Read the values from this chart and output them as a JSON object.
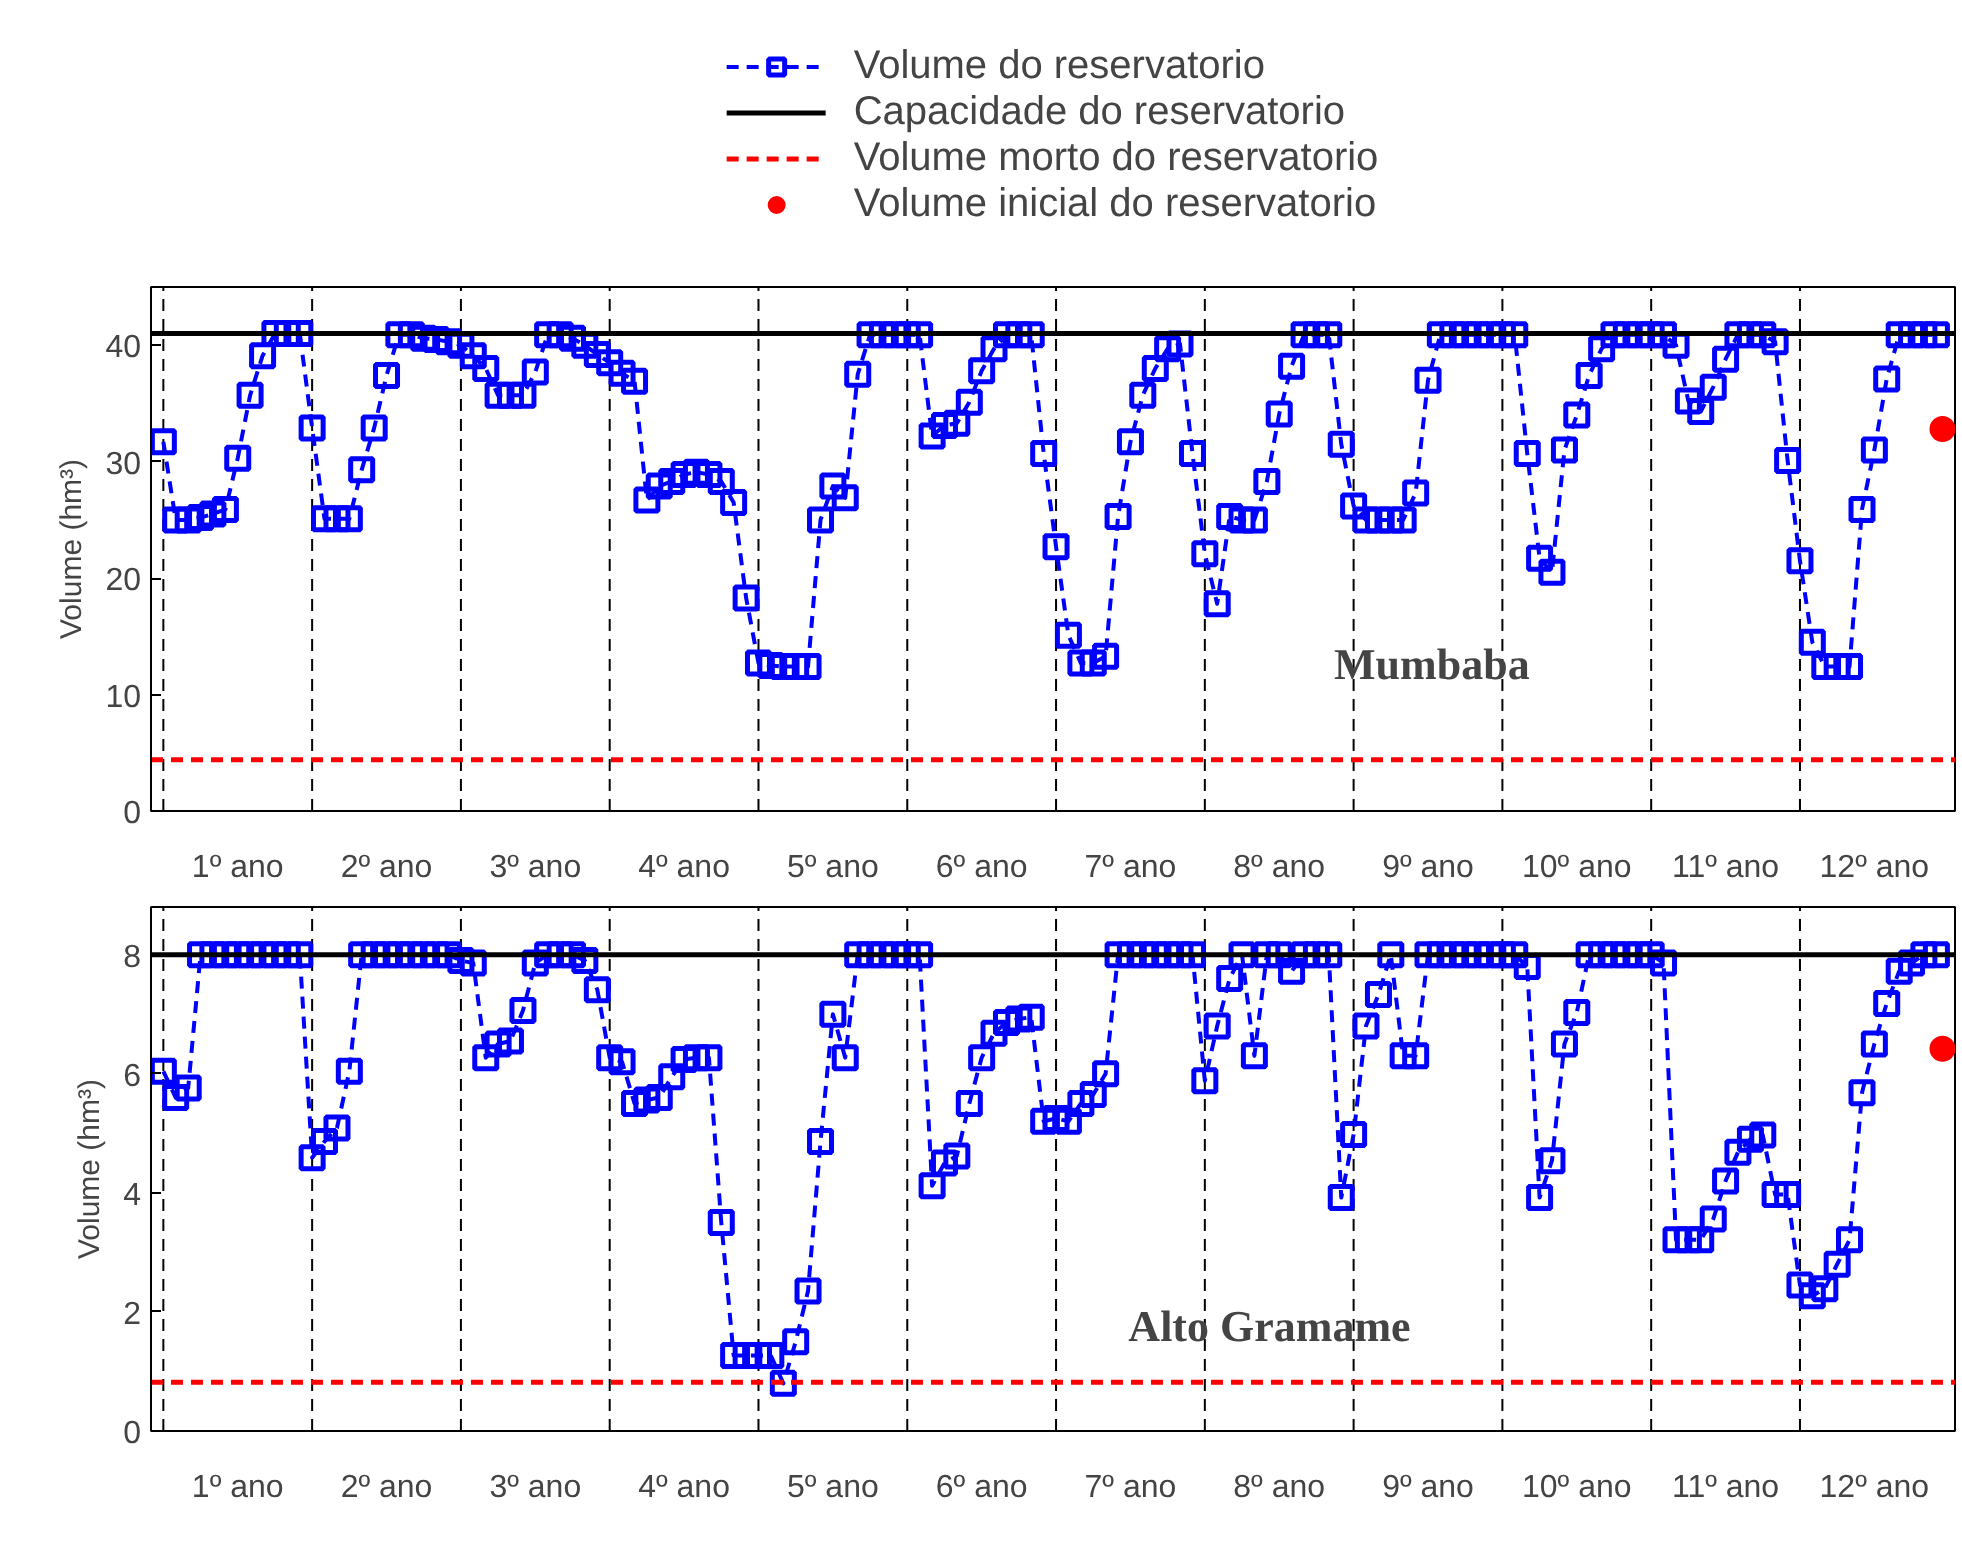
{
  "chart_data": [
    {
      "type": "line",
      "ylabel": "Volume (hm³)",
      "annotations": [
        "Mumbaba"
      ],
      "legend": "top",
      "grid": false,
      "xlim": [
        0.417,
        12.542
      ],
      "ylim": [
        0,
        45
      ],
      "yticks": [
        0,
        10,
        20,
        30,
        40
      ],
      "xticks": [
        {
          "value": 1,
          "label": "1º ano"
        },
        {
          "value": 2,
          "label": "2º ano"
        },
        {
          "value": 3,
          "label": "3º ano"
        },
        {
          "value": 4,
          "label": "4º ano"
        },
        {
          "value": 5,
          "label": "5º ano"
        },
        {
          "value": 6,
          "label": "6º ano"
        },
        {
          "value": 7,
          "label": "7º ano"
        },
        {
          "value": 8,
          "label": "8º ano"
        },
        {
          "value": 9,
          "label": "9º ano"
        },
        {
          "value": 10,
          "label": "10º ano"
        },
        {
          "value": 11,
          "label": "11º ano"
        },
        {
          "value": 12,
          "label": "12º ano"
        }
      ],
      "ref_lines": [
        {
          "axis": "x",
          "value": 0.5,
          "color": "#000000",
          "line_style": "dashed"
        },
        {
          "axis": "x",
          "value": 1.5,
          "color": "#000000",
          "line_style": "dashed"
        },
        {
          "axis": "x",
          "value": 2.5,
          "color": "#000000",
          "line_style": "dashed"
        },
        {
          "axis": "x",
          "value": 3.5,
          "color": "#000000",
          "line_style": "dashed"
        },
        {
          "axis": "x",
          "value": 4.5,
          "color": "#000000",
          "line_style": "dashed"
        },
        {
          "axis": "x",
          "value": 5.5,
          "color": "#000000",
          "line_style": "dashed"
        },
        {
          "axis": "x",
          "value": 6.5,
          "color": "#000000",
          "line_style": "dashed"
        },
        {
          "axis": "x",
          "value": 7.5,
          "color": "#000000",
          "line_style": "dashed"
        },
        {
          "axis": "x",
          "value": 8.5,
          "color": "#000000",
          "line_style": "dashed"
        },
        {
          "axis": "x",
          "value": 9.5,
          "color": "#000000",
          "line_style": "dashed"
        },
        {
          "axis": "x",
          "value": 10.5,
          "color": "#000000",
          "line_style": "dashed"
        },
        {
          "axis": "x",
          "value": 11.5,
          "color": "#000000",
          "line_style": "dashed"
        }
      ],
      "series": [
        {
          "name": "Volume do reservatorio",
          "marker": "square",
          "line_style": "dashed",
          "color": "#0000ff",
          "x": [
            0.5,
            0.583,
            0.667,
            0.75,
            0.833,
            0.917,
            1,
            1.083,
            1.167,
            1.25,
            1.333,
            1.417,
            1.5,
            1.583,
            1.667,
            1.75,
            1.833,
            1.917,
            2,
            2.083,
            2.167,
            2.25,
            2.333,
            2.417,
            2.5,
            2.583,
            2.667,
            2.75,
            2.833,
            2.917,
            3,
            3.083,
            3.167,
            3.25,
            3.333,
            3.417,
            3.5,
            3.583,
            3.667,
            3.75,
            3.833,
            3.917,
            4,
            4.083,
            4.167,
            4.25,
            4.333,
            4.417,
            4.5,
            4.583,
            4.667,
            4.75,
            4.833,
            4.917,
            5,
            5.083,
            5.167,
            5.25,
            5.333,
            5.417,
            5.5,
            5.583,
            5.667,
            5.75,
            5.833,
            5.917,
            6,
            6.083,
            6.167,
            6.25,
            6.333,
            6.417,
            6.5,
            6.583,
            6.667,
            6.75,
            6.833,
            6.917,
            7,
            7.083,
            7.167,
            7.25,
            7.333,
            7.417,
            7.5,
            7.583,
            7.667,
            7.75,
            7.833,
            7.917,
            8,
            8.083,
            8.167,
            8.25,
            8.333,
            8.417,
            8.5,
            8.583,
            8.667,
            8.75,
            8.833,
            8.917,
            9,
            9.083,
            9.167,
            9.25,
            9.333,
            9.417,
            9.5,
            9.583,
            9.667,
            9.75,
            9.833,
            9.917,
            10,
            10.083,
            10.167,
            10.25,
            10.333,
            10.417,
            10.5,
            10.583,
            10.667,
            10.75,
            10.833,
            10.917,
            11,
            11.083,
            11.167,
            11.25,
            11.333,
            11.417,
            11.5,
            11.583,
            11.667,
            11.75,
            11.833,
            11.917,
            12,
            12.083,
            12.167,
            12.25,
            12.333,
            12.417
          ],
          "values": [
            31.7,
            25,
            25,
            25.2,
            25.5,
            25.9,
            30.3,
            35.7,
            39.1,
            41,
            41,
            41,
            32.9,
            25.1,
            25.1,
            25.1,
            29.3,
            32.9,
            37.4,
            40.9,
            40.9,
            40.6,
            40.5,
            40.3,
            40,
            39.1,
            38,
            35.7,
            35.7,
            35.7,
            37.7,
            40.9,
            40.9,
            40.6,
            40,
            39.2,
            38.5,
            37.6,
            36.9,
            26.7,
            27.9,
            28.3,
            28.9,
            29.1,
            28.9,
            28.3,
            26.5,
            18.3,
            12.7,
            12.5,
            12.4,
            12.4,
            12.4,
            25,
            27.9,
            26.9,
            37.5,
            40.9,
            40.9,
            40.9,
            40.9,
            40.9,
            32.2,
            33.1,
            33.3,
            35.1,
            37.8,
            39.7,
            40.9,
            40.9,
            40.9,
            30.7,
            22.7,
            15.1,
            12.7,
            12.7,
            13.3,
            25.3,
            31.7,
            35.7,
            38,
            39.7,
            40.1,
            30.7,
            22.1,
            17.8,
            25.3,
            25,
            25,
            28.3,
            34.1,
            38.2,
            40.9,
            40.9,
            40.9,
            31.5,
            26.2,
            25,
            25,
            25,
            25,
            27.3,
            37,
            40.9,
            40.9,
            40.9,
            40.9,
            40.9,
            40.9,
            40.9,
            30.7,
            21.7,
            20.5,
            31,
            34,
            37.4,
            39.7,
            40.9,
            40.9,
            40.9,
            40.9,
            40.9,
            40,
            35.2,
            34.3,
            36.4,
            38.8,
            40.9,
            40.9,
            40.9,
            40.3,
            30.1,
            21.5,
            14.5,
            12.4,
            12.4,
            12.4,
            25.9,
            31,
            37.1,
            40.9,
            40.9,
            40.9,
            40.9
          ]
        },
        {
          "name": "Capacidade do reservatorio",
          "marker": "none",
          "line_style": "solid",
          "color": "#000000",
          "x": [
            0.417,
            12.542
          ],
          "values": [
            41,
            41
          ]
        },
        {
          "name": "Volume morto do reservatorio",
          "marker": "none",
          "line_style": "dashed",
          "color": "#ff0000",
          "x": [
            0.417,
            12.542
          ],
          "values": [
            4.4,
            4.4
          ]
        },
        {
          "name": "Volume inicial do reservatorio",
          "type": "scatter",
          "marker": "circle",
          "color": "#ff0000",
          "x": [
            12.458
          ],
          "values": [
            32.8
          ]
        }
      ]
    },
    {
      "type": "line",
      "ylabel": "Volume (hm³)",
      "annotations": [
        "Alto Gramame"
      ],
      "legend": false,
      "grid": false,
      "xlim": [
        0.417,
        12.542
      ],
      "ylim": [
        0,
        8.8
      ],
      "yticks": [
        0,
        2,
        4,
        6,
        8
      ],
      "xticks": [
        {
          "value": 1,
          "label": "1º ano"
        },
        {
          "value": 2,
          "label": "2º ano"
        },
        {
          "value": 3,
          "label": "3º ano"
        },
        {
          "value": 4,
          "label": "4º ano"
        },
        {
          "value": 5,
          "label": "5º ano"
        },
        {
          "value": 6,
          "label": "6º ano"
        },
        {
          "value": 7,
          "label": "7º ano"
        },
        {
          "value": 8,
          "label": "8º ano"
        },
        {
          "value": 9,
          "label": "9º ano"
        },
        {
          "value": 10,
          "label": "10º ano"
        },
        {
          "value": 11,
          "label": "11º ano"
        },
        {
          "value": 12,
          "label": "12º ano"
        }
      ],
      "ref_lines": [
        {
          "axis": "x",
          "value": 0.5,
          "color": "#000000",
          "line_style": "dashed"
        },
        {
          "axis": "x",
          "value": 1.5,
          "color": "#000000",
          "line_style": "dashed"
        },
        {
          "axis": "x",
          "value": 2.5,
          "color": "#000000",
          "line_style": "dashed"
        },
        {
          "axis": "x",
          "value": 3.5,
          "color": "#000000",
          "line_style": "dashed"
        },
        {
          "axis": "x",
          "value": 4.5,
          "color": "#000000",
          "line_style": "dashed"
        },
        {
          "axis": "x",
          "value": 5.5,
          "color": "#000000",
          "line_style": "dashed"
        },
        {
          "axis": "x",
          "value": 6.5,
          "color": "#000000",
          "line_style": "dashed"
        },
        {
          "axis": "x",
          "value": 7.5,
          "color": "#000000",
          "line_style": "dashed"
        },
        {
          "axis": "x",
          "value": 8.5,
          "color": "#000000",
          "line_style": "dashed"
        },
        {
          "axis": "x",
          "value": 9.5,
          "color": "#000000",
          "line_style": "dashed"
        },
        {
          "axis": "x",
          "value": 10.5,
          "color": "#000000",
          "line_style": "dashed"
        },
        {
          "axis": "x",
          "value": 11.5,
          "color": "#000000",
          "line_style": "dashed"
        }
      ],
      "series": [
        {
          "marker": "square",
          "line_style": "dashed",
          "color": "#0000ff",
          "x": [
            0.5,
            0.583,
            0.667,
            0.75,
            0.833,
            0.917,
            1,
            1.083,
            1.167,
            1.25,
            1.333,
            1.417,
            1.5,
            1.583,
            1.667,
            1.75,
            1.833,
            1.917,
            2,
            2.083,
            2.167,
            2.25,
            2.333,
            2.417,
            2.5,
            2.583,
            2.667,
            2.75,
            2.833,
            2.917,
            3,
            3.083,
            3.167,
            3.25,
            3.333,
            3.417,
            3.5,
            3.583,
            3.667,
            3.75,
            3.833,
            3.917,
            4,
            4.083,
            4.167,
            4.25,
            4.333,
            4.417,
            4.5,
            4.583,
            4.667,
            4.75,
            4.833,
            4.917,
            5,
            5.083,
            5.167,
            5.25,
            5.333,
            5.417,
            5.5,
            5.583,
            5.667,
            5.75,
            5.833,
            5.917,
            6,
            6.083,
            6.167,
            6.25,
            6.333,
            6.417,
            6.5,
            6.583,
            6.667,
            6.75,
            6.833,
            6.917,
            7,
            7.083,
            7.167,
            7.25,
            7.333,
            7.417,
            7.5,
            7.583,
            7.667,
            7.75,
            7.833,
            7.917,
            8,
            8.083,
            8.167,
            8.25,
            8.333,
            8.417,
            8.5,
            8.583,
            8.667,
            8.75,
            8.833,
            8.917,
            9,
            9.083,
            9.167,
            9.25,
            9.333,
            9.417,
            9.5,
            9.583,
            9.667,
            9.75,
            9.833,
            9.917,
            10,
            10.083,
            10.167,
            10.25,
            10.333,
            10.417,
            10.5,
            10.583,
            10.667,
            10.75,
            10.833,
            10.917,
            11,
            11.083,
            11.167,
            11.25,
            11.333,
            11.417,
            11.5,
            11.583,
            11.667,
            11.75,
            11.833,
            11.917,
            12,
            12.083,
            12.167,
            12.25,
            12.333,
            12.417
          ],
          "values": [
            6.04,
            5.6,
            5.76,
            8,
            8,
            8,
            8,
            8,
            8,
            8,
            8,
            8,
            4.59,
            4.86,
            5.09,
            6.04,
            8,
            8,
            8,
            8,
            8,
            8,
            8,
            8,
            7.9,
            7.86,
            6.27,
            6.5,
            6.55,
            7.06,
            7.86,
            8,
            8,
            8,
            7.9,
            7.41,
            6.27,
            6.2,
            5.5,
            5.56,
            5.6,
            5.95,
            6.24,
            6.27,
            6.27,
            3.5,
            1.27,
            1.27,
            1.27,
            1.27,
            0.8,
            1.5,
            2.35,
            4.86,
            7.0,
            6.27,
            8,
            8,
            8,
            8,
            8,
            8,
            4.12,
            4.5,
            4.62,
            5.5,
            6.27,
            6.68,
            6.86,
            6.92,
            6.95,
            5.2,
            5.25,
            5.2,
            5.5,
            5.65,
            6.0,
            8,
            8,
            8,
            8,
            8,
            8,
            8,
            5.88,
            6.8,
            7.6,
            8,
            6.3,
            8,
            8,
            7.72,
            8,
            8,
            8,
            3.92,
            4.98,
            6.8,
            7.33,
            8,
            6.3,
            6.3,
            8,
            8,
            8,
            8,
            8,
            8,
            8,
            8,
            7.8,
            3.92,
            4.54,
            6.5,
            7.03,
            8,
            8,
            8,
            8,
            8,
            8,
            7.86,
            3.21,
            3.21,
            3.21,
            3.56,
            4.2,
            4.68,
            4.9,
            4.97,
            3.97,
            3.97,
            2.45,
            2.27,
            2.39,
            2.8,
            3.21,
            5.68,
            6.5,
            7.18,
            7.72,
            7.86,
            8,
            8
          ]
        },
        {
          "marker": "none",
          "line_style": "solid",
          "color": "#000000",
          "x": [
            0.417,
            12.542
          ],
          "values": [
            8,
            8
          ]
        },
        {
          "marker": "none",
          "line_style": "dashed",
          "color": "#ff0000",
          "x": [
            0.417,
            12.542
          ],
          "values": [
            0.82,
            0.82
          ]
        },
        {
          "type": "scatter",
          "marker": "circle",
          "color": "#ff0000",
          "x": [
            12.458
          ],
          "values": [
            6.42
          ]
        }
      ]
    }
  ]
}
